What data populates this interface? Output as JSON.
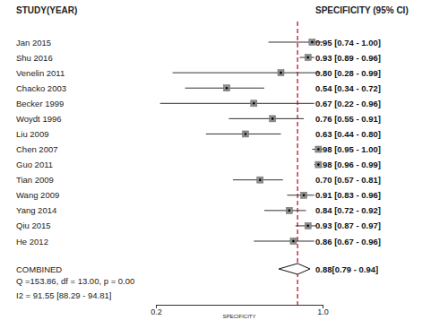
{
  "chart_data": {
    "type": "forest",
    "title": "STUDY(YEAR)",
    "subtitle": "SPECIFICITY (95% CI)",
    "x_label": "SPECIFICITY",
    "categories": [
      "Jan 2015",
      "Shu 2016",
      "Venelin 2011",
      "Chacko 2003",
      "Becker 1999",
      "Woydt 1996",
      "Liu 2009",
      "Chen 2007",
      "Guo 2011",
      "Tian 2009",
      "Wang 2009",
      "Yang 2014",
      "Qiu 2015",
      "He 2012"
    ],
    "values": [
      0.95,
      0.93,
      0.8,
      0.54,
      0.67,
      0.76,
      0.63,
      0.98,
      0.98,
      0.7,
      0.91,
      0.84,
      0.93,
      0.86
    ],
    "ci_lower": [
      0.74,
      0.89,
      0.28,
      0.34,
      0.22,
      0.55,
      0.44,
      0.95,
      0.96,
      0.57,
      0.83,
      0.72,
      0.87,
      0.67
    ],
    "ci_upper": [
      1.0,
      0.96,
      0.99,
      0.72,
      0.96,
      0.91,
      0.8,
      1.0,
      0.99,
      0.81,
      0.96,
      0.92,
      0.97,
      0.96
    ],
    "value_labels": [
      "0.95 [0.74 - 1.00]",
      "0.93 [0.89 - 0.96]",
      "0.80 [0.28 - 0.99]",
      "0.54 [0.34 - 0.72]",
      "0.67 [0.22 - 0.96]",
      "0.76 [0.55 - 0.91]",
      "0.63 [0.44 - 0.80]",
      "0.98 [0.95 - 1.00]",
      "0.98 [0.96 - 0.99]",
      "0.70 [0.57 - 0.81]",
      "0.91 [0.83 - 0.96]",
      "0.84 [0.72 - 0.92]",
      "0.93 [0.87 - 0.97]",
      "0.86 [0.67 - 0.96]"
    ],
    "combined": {
      "label": "COMBINED",
      "value": 0.88,
      "lower": 0.79,
      "upper": 0.94,
      "value_label": "0.88[0.79 - 0.94]"
    },
    "statistics": [
      "Q =153.86, df = 13.00, p =  0.00",
      "I2 = 91.55 [88.29 - 94.81]"
    ],
    "xlim": [
      0.2,
      1.0
    ],
    "xticks": [
      0.2,
      {
        "value": 1.0,
        "label": "1.0"
      }
    ],
    "data_labels": true
  }
}
